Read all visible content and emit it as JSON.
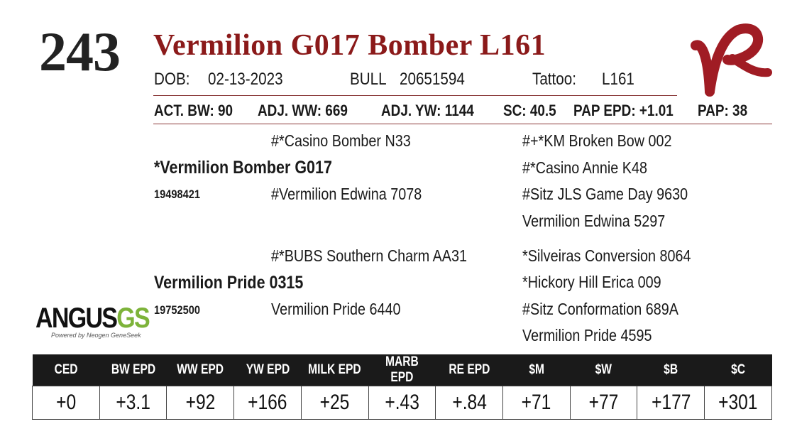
{
  "lot_number": "243",
  "name": "Vermilion G017 Bomber L161",
  "logo_text": "VR",
  "info": {
    "dob_label": "DOB:",
    "dob": "02-13-2023",
    "sex": "BULL",
    "registration": "20651594",
    "tattoo_label": "Tattoo:",
    "tattoo": "L161"
  },
  "performance": {
    "act_bw": "ACT. BW: 90",
    "adj_ww": "ADJ. WW: 669",
    "adj_yw": "ADJ. YW: 1144",
    "sc": "SC: 40.5",
    "pap_epd": "PAP EPD: +1.01",
    "pap": "PAP: 38"
  },
  "pedigree": {
    "sire": {
      "name": "*Vermilion Bomber G017",
      "reg": "19498421",
      "sire": "#*Casino Bomber N33",
      "dam": "#Vermilion Edwina 7078",
      "gg": [
        "#+*KM Broken Bow 002",
        "#*Casino Annie K48",
        "#Sitz JLS Game Day 9630",
        "Vermilion Edwina 5297"
      ]
    },
    "dam": {
      "name": "Vermilion Pride 0315",
      "reg": "19752500",
      "sire": "#*BUBS Southern Charm AA31",
      "dam": "Vermilion Pride 6440",
      "gg": [
        "*Silveiras Conversion 8064",
        "*Hickory Hill Erica 009",
        "#Sitz Conformation 689A",
        "Vermilion Pride 4595"
      ]
    }
  },
  "angus_logo": {
    "main": "ANGUS",
    "suffix": "GS",
    "tagline": "Powered by Neogen GeneSeek"
  },
  "epd_table": {
    "headers": [
      "CED",
      "BW EPD",
      "WW EPD",
      "YW EPD",
      "MILK EPD",
      "MARB EPD",
      "RE EPD",
      "$M",
      "$W",
      "$B",
      "$C"
    ],
    "values": [
      "+0",
      "+3.1",
      "+92",
      "+166",
      "+25",
      "+.43",
      "+.84",
      "+71",
      "+77",
      "+177",
      "+301"
    ]
  },
  "colors": {
    "title": "#8b1a1a",
    "logo": "#a01c24",
    "angus_gs": "#7db33a"
  }
}
